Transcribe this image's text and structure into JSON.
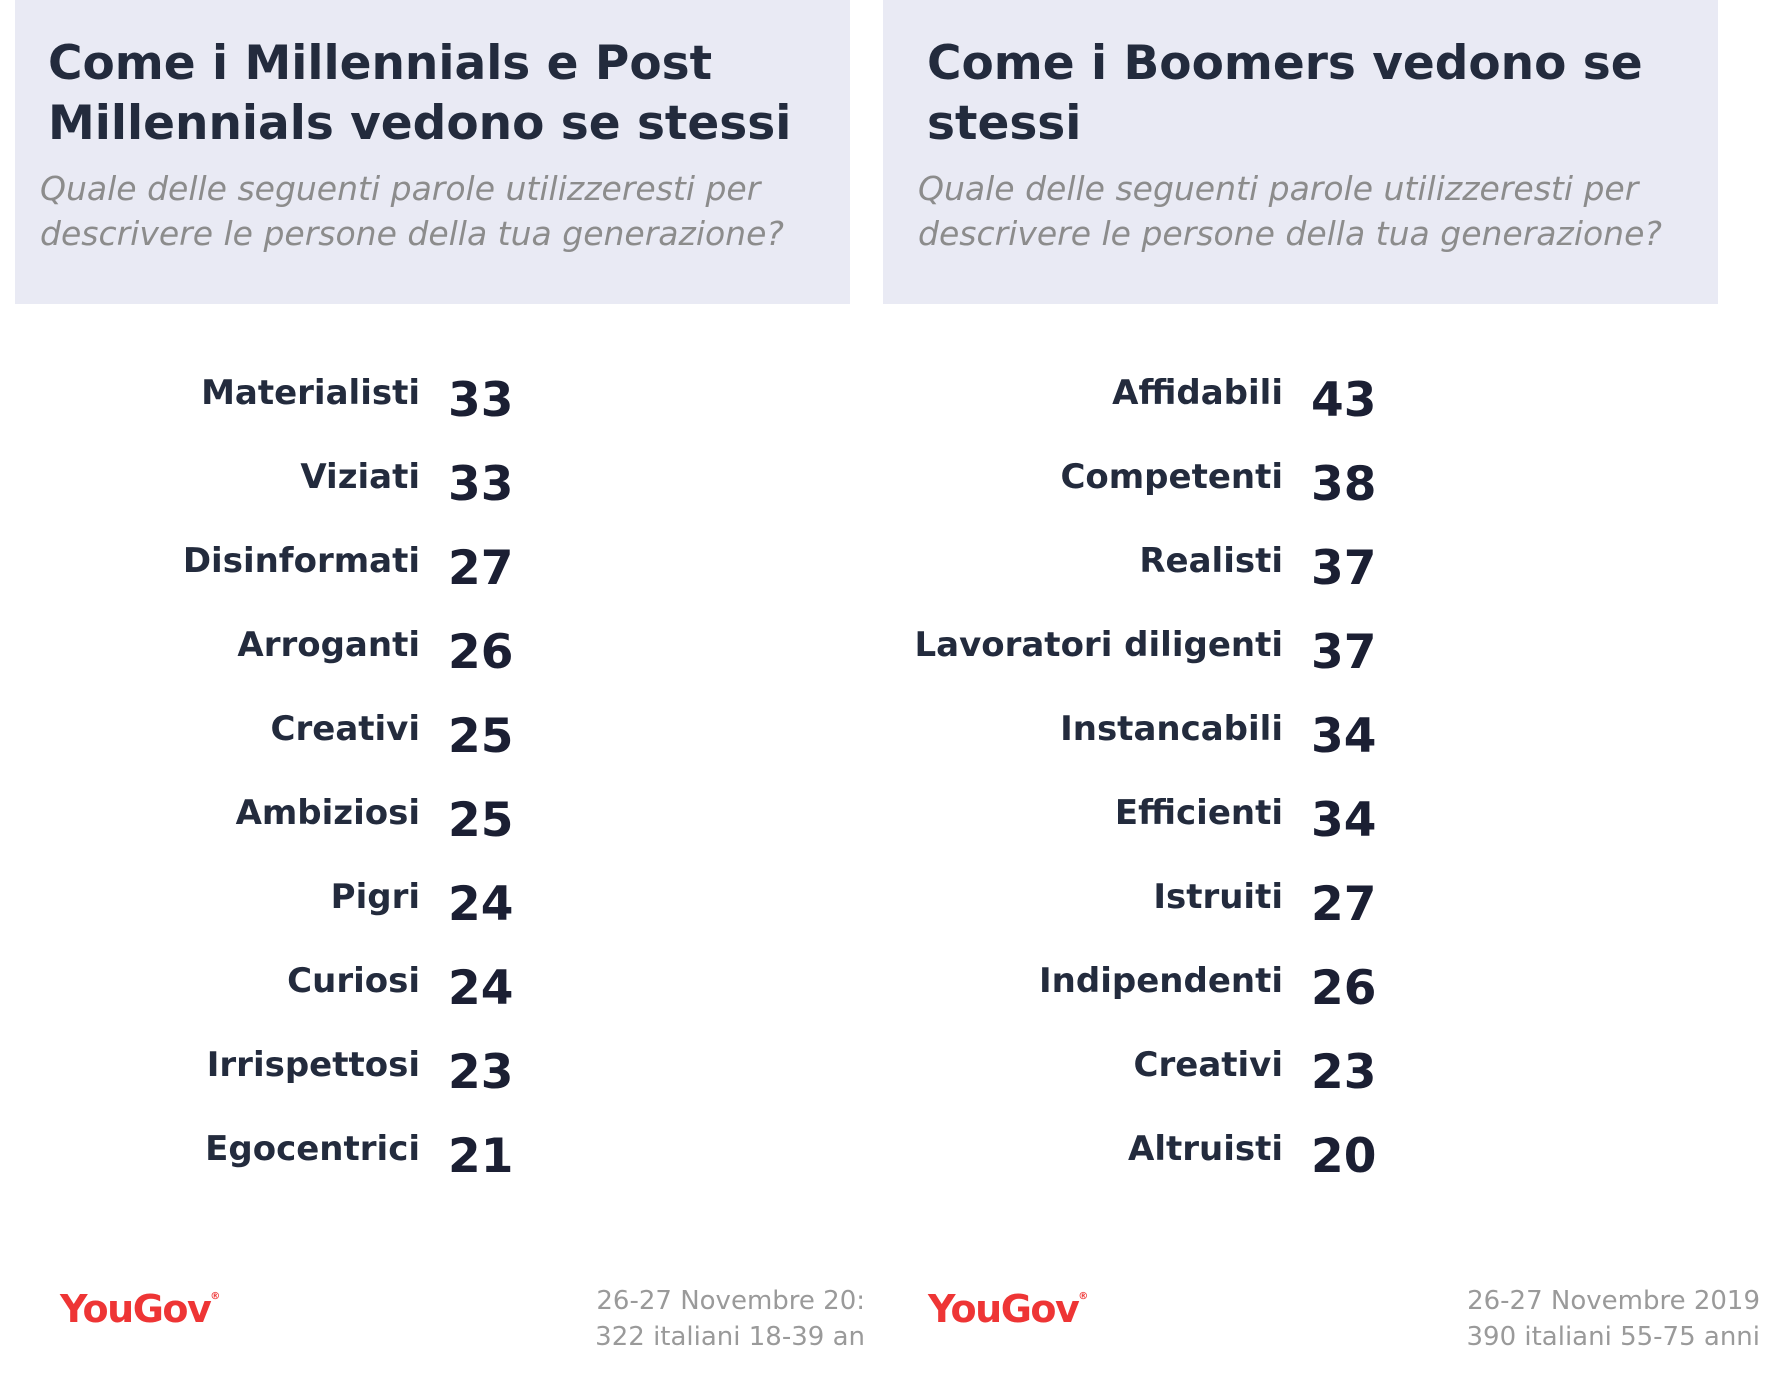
{
  "chart_data": [
    {
      "type": "table",
      "title": "Come i Millennials e Post Millennials vedono se stessi",
      "subtitle": "Quale delle seguenti parole utilizzeresti per descrivere le persone della tua generazione?",
      "categories": [
        "Materialisti",
        "Viziati",
        "Disinformati",
        "Arroganti",
        "Creativi",
        "Ambiziosi",
        "Pigri",
        "Curiosi",
        "Irrispettosi",
        "Egocentrici"
      ],
      "values": [
        33,
        33,
        27,
        26,
        25,
        25,
        24,
        24,
        23,
        21
      ],
      "logo": "YouGov",
      "footnote": [
        "26-27 Novembre 20:",
        "322 italiani 18-39 an"
      ]
    },
    {
      "type": "table",
      "title": "Come i Boomers vedono se stessi",
      "subtitle": "Quale delle seguenti parole utilizzeresti per descrivere le persone della tua generazione?",
      "categories": [
        "Affidabili",
        "Competenti",
        "Realisti",
        "Lavoratori diligenti",
        "Instancabili",
        "Efficienti",
        "Istruiti",
        "Indipendenti",
        "Creativi",
        "Altruisti"
      ],
      "values": [
        43,
        38,
        37,
        37,
        34,
        34,
        27,
        26,
        23,
        20
      ],
      "logo": "YouGov",
      "footnote": [
        "26-27 Novembre 2019",
        "390 italiani 55-75 anni"
      ]
    }
  ],
  "colors": {
    "header_bg": "#e9eaf4",
    "title": "#232b3d",
    "subtitle": "#8c8c8c",
    "logo": "#ee3535",
    "footnote": "#9a9a9a"
  }
}
